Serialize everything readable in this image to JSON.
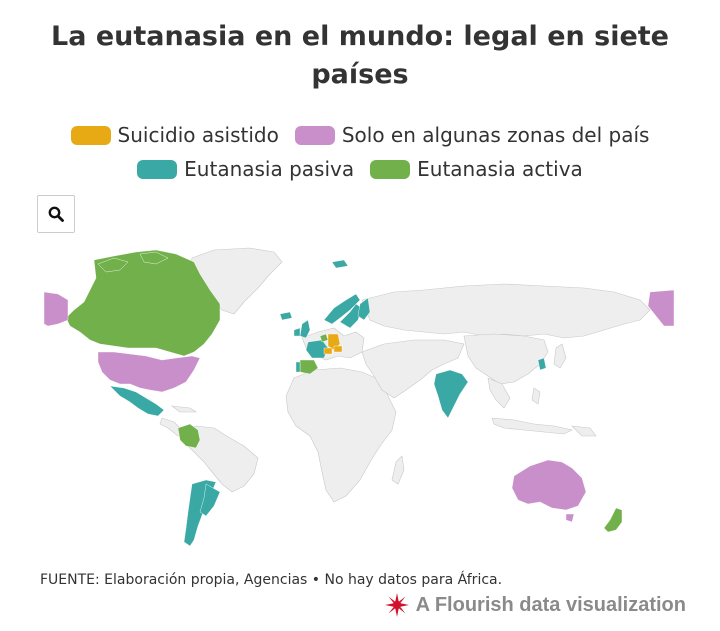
{
  "title": "La eutanasia en el mundo: legal en siete países",
  "legend": [
    {
      "label": "Suicidio asistido",
      "color": "#e8aa14"
    },
    {
      "label": "Solo en algunas zonas del país",
      "color": "#c98fcb"
    },
    {
      "label": "Eutanasia pasiva",
      "color": "#3aa8a4"
    },
    {
      "label": "Eutanasia activa",
      "color": "#72b04c"
    }
  ],
  "search": {
    "icon": "search-icon"
  },
  "map": {
    "base_color": "#eeeeee",
    "border_color": "#c8c8c8",
    "regions": [
      {
        "name": "Canadá",
        "category": "Eutanasia activa"
      },
      {
        "name": "Estados Unidos",
        "category": "Solo en algunas zonas del país"
      },
      {
        "name": "Alaska",
        "category": "Solo en algunas zonas del país"
      },
      {
        "name": "México",
        "category": "Eutanasia pasiva"
      },
      {
        "name": "Colombia",
        "category": "Eutanasia activa"
      },
      {
        "name": "Argentina",
        "category": "Eutanasia pasiva"
      },
      {
        "name": "Chile",
        "category": "Eutanasia pasiva"
      },
      {
        "name": "España",
        "category": "Eutanasia activa"
      },
      {
        "name": "Portugal",
        "category": "Eutanasia pasiva"
      },
      {
        "name": "Francia",
        "category": "Eutanasia pasiva"
      },
      {
        "name": "Reino Unido",
        "category": "Eutanasia pasiva"
      },
      {
        "name": "Irlanda",
        "category": "Eutanasia pasiva"
      },
      {
        "name": "Benelux",
        "category": "Eutanasia activa"
      },
      {
        "name": "Suiza",
        "category": "Suicidio asistido"
      },
      {
        "name": "Alemania",
        "category": "Suicidio asistido"
      },
      {
        "name": "Austria",
        "category": "Suicidio asistido"
      },
      {
        "name": "Noruega",
        "category": "Eutanasia pasiva"
      },
      {
        "name": "Suecia",
        "category": "Eutanasia pasiva"
      },
      {
        "name": "Finlandia",
        "category": "Eutanasia pasiva"
      },
      {
        "name": "Islandia",
        "category": "Eutanasia pasiva"
      },
      {
        "name": "Svalbard",
        "category": "Eutanasia pasiva"
      },
      {
        "name": "India",
        "category": "Eutanasia pasiva"
      },
      {
        "name": "Corea del Sur",
        "category": "Eutanasia pasiva"
      },
      {
        "name": "Australia",
        "category": "Solo en algunas zonas del país"
      },
      {
        "name": "Nueva Zelanda",
        "category": "Eutanasia activa"
      },
      {
        "name": "Chukotka",
        "category": "Solo en algunas zonas del país"
      }
    ]
  },
  "source": "FUENTE: Elaboración propia, Agencias • No hay datos para África.",
  "credit": {
    "label": "A Flourish data visualization",
    "icon": "flourish-logo-icon"
  }
}
